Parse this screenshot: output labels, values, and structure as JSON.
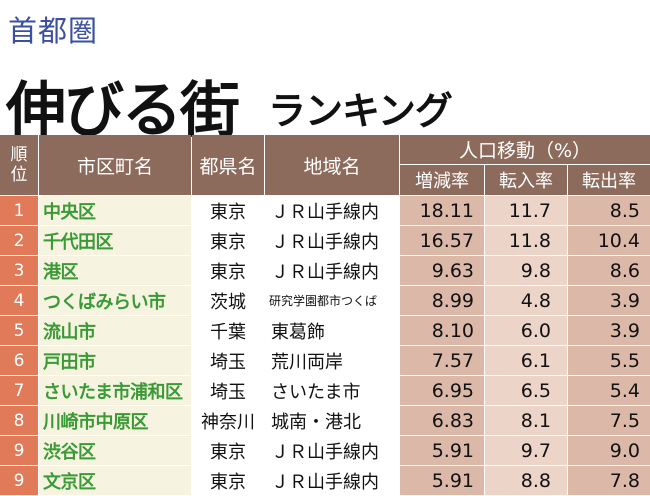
{
  "header": {
    "subtitle": "首都圏",
    "title_main": "伸びる街",
    "title_sub": "ランキング"
  },
  "table": {
    "columns": {
      "rank_line1": "順",
      "rank_line2": "位",
      "city": "市区町名",
      "prefecture": "都県名",
      "area": "地域名",
      "movement_group": "人口移動（%）",
      "net_change": "増減率",
      "move_in": "転入率",
      "move_out": "転出率"
    },
    "rows": [
      {
        "rank": "1",
        "city": "中央区",
        "prefecture": "東京",
        "area": "ＪＲ山手線内",
        "net_change": "18.11",
        "move_in": "11.7",
        "move_out": "8.5"
      },
      {
        "rank": "2",
        "city": "千代田区",
        "prefecture": "東京",
        "area": "ＪＲ山手線内",
        "net_change": "16.57",
        "move_in": "11.8",
        "move_out": "10.4"
      },
      {
        "rank": "3",
        "city": "港区",
        "prefecture": "東京",
        "area": "ＪＲ山手線内",
        "net_change": "9.63",
        "move_in": "9.8",
        "move_out": "8.6"
      },
      {
        "rank": "4",
        "city": "つくばみらい市",
        "prefecture": "茨城",
        "area": "研究学園都市つくば",
        "net_change": "8.99",
        "move_in": "4.8",
        "move_out": "3.9"
      },
      {
        "rank": "5",
        "city": "流山市",
        "prefecture": "千葉",
        "area": "東葛飾",
        "net_change": "8.10",
        "move_in": "6.0",
        "move_out": "3.9"
      },
      {
        "rank": "6",
        "city": "戸田市",
        "prefecture": "埼玉",
        "area": "荒川両岸",
        "net_change": "7.57",
        "move_in": "6.1",
        "move_out": "5.5"
      },
      {
        "rank": "7",
        "city": "さいたま市浦和区",
        "prefecture": "埼玉",
        "area": "さいたま市",
        "net_change": "6.95",
        "move_in": "6.5",
        "move_out": "5.4"
      },
      {
        "rank": "8",
        "city": "川崎市中原区",
        "prefecture": "神奈川",
        "area": "城南・港北",
        "net_change": "6.83",
        "move_in": "8.1",
        "move_out": "7.5"
      },
      {
        "rank": "9",
        "city": "渋谷区",
        "prefecture": "東京",
        "area": "ＪＲ山手線内",
        "net_change": "5.91",
        "move_in": "9.7",
        "move_out": "9.0"
      },
      {
        "rank": "9",
        "city": "文京区",
        "prefecture": "東京",
        "area": "ＪＲ山手線内",
        "net_change": "5.91",
        "move_in": "8.8",
        "move_out": "7.8"
      }
    ]
  },
  "colors": {
    "header_bg": "#8c6b5c",
    "rank_bg": "#e07a58",
    "city_text": "#3a9a36",
    "subtitle_text": "#3b4fa3"
  }
}
